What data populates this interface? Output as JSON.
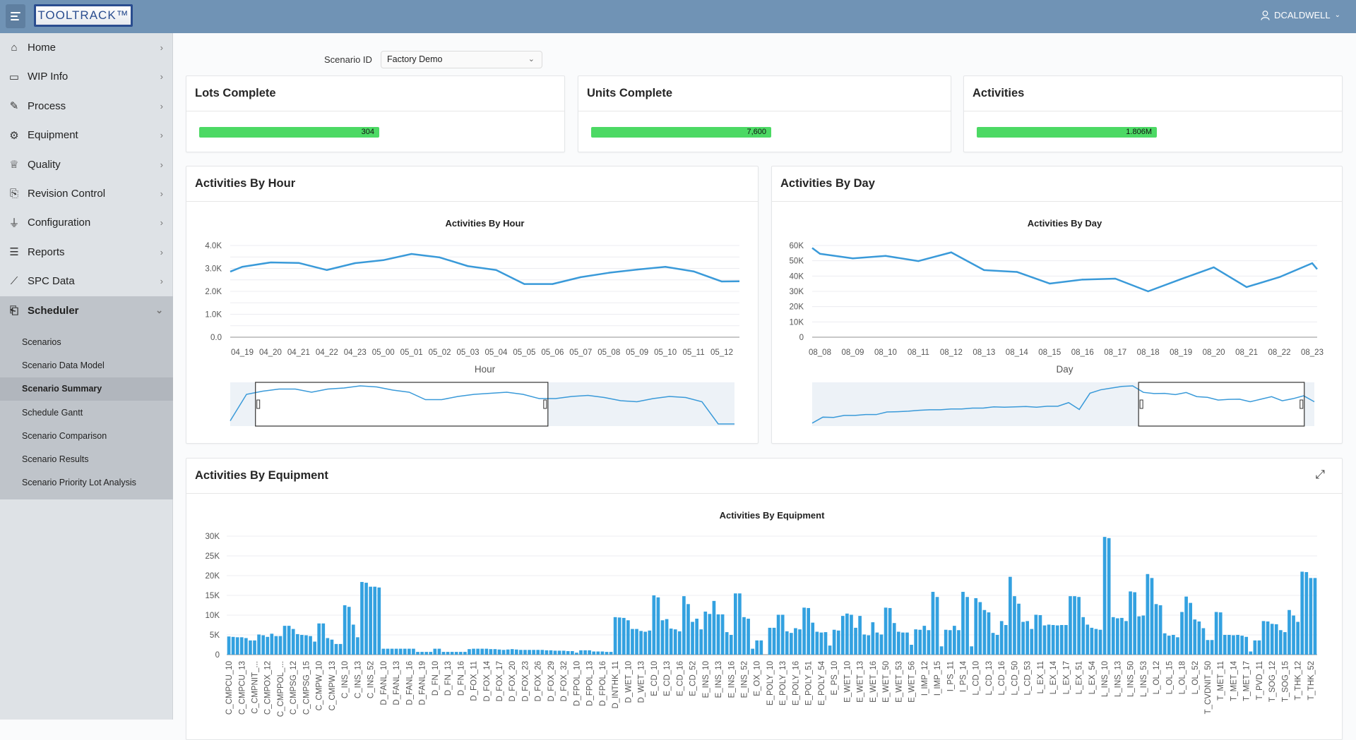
{
  "header": {
    "logo": "TOOLTRACK™",
    "user": "DCALDWELL",
    "color": "#7093b5"
  },
  "sidebar": {
    "items": [
      {
        "label": "Home",
        "icon": "home-icon"
      },
      {
        "label": "WIP Info",
        "icon": "folder-icon"
      },
      {
        "label": "Process",
        "icon": "pencil-icon"
      },
      {
        "label": "Equipment",
        "icon": "gear-icon"
      },
      {
        "label": "Quality",
        "icon": "trophy-icon"
      },
      {
        "label": "Revision Control",
        "icon": "document-clock-icon"
      },
      {
        "label": "Configuration",
        "icon": "hierarchy-icon"
      },
      {
        "label": "Reports",
        "icon": "database-chart-icon"
      },
      {
        "label": "SPC Data",
        "icon": "line-chart-icon"
      },
      {
        "label": "Scheduler",
        "icon": "clipboard-clock-icon",
        "expanded": true
      }
    ],
    "scheduler_items": [
      "Scenarios",
      "Scenario Data Model",
      "Scenario Summary",
      "Schedule Gantt",
      "Scenario Comparison",
      "Scenario Results",
      "Scenario Priority Lot Analysis"
    ],
    "active_item": "Scenario Summary"
  },
  "filter": {
    "label": "Scenario ID",
    "value": "Factory Demo"
  },
  "kpis": [
    {
      "title": "Lots Complete",
      "value": "304"
    },
    {
      "title": "Units Complete",
      "value": "7,600"
    },
    {
      "title": "Activities",
      "value": "1.806M"
    }
  ],
  "kpi_bar_color": "#4cd964",
  "cards": {
    "hour": "Activities By Hour",
    "day": "Activities By Day",
    "equipment": "Activities By Equipment"
  },
  "chart_data": [
    {
      "type": "line",
      "title": "Activities By Hour",
      "xlabel": "Hour",
      "ylabel": "",
      "categories": [
        "04_19",
        "04_20",
        "04_21",
        "04_22",
        "04_23",
        "05_00",
        "05_01",
        "05_02",
        "05_03",
        "05_04",
        "05_05",
        "05_06",
        "05_07",
        "05_08",
        "05_09",
        "05_10",
        "05_11",
        "05_12"
      ],
      "values": [
        3070,
        3260,
        3240,
        2930,
        3230,
        3360,
        3630,
        3480,
        3100,
        2930,
        2320,
        2320,
        2620,
        2810,
        2950,
        3070,
        2870,
        2430
      ],
      "ylim": [
        0,
        4000
      ],
      "yticks": [
        "0.0",
        "1.0K",
        "2.0K",
        "3.0K",
        "4.0K"
      ],
      "grid": true,
      "color": "#3a9ad9",
      "navigator": {
        "values": [
          0.3,
          2.8,
          3.1,
          3.3,
          3.3,
          3.0,
          3.3,
          3.4,
          3.6,
          3.5,
          3.2,
          3.0,
          2.3,
          2.3,
          2.6,
          2.8,
          2.9,
          3.0,
          2.8,
          2.4,
          2.4,
          2.6,
          2.7,
          2.5,
          2.2,
          2.1,
          2.4,
          2.6,
          2.5,
          2.1,
          0,
          0
        ],
        "window": [
          0.05,
          0.63
        ]
      }
    },
    {
      "type": "line",
      "title": "Activities By Day",
      "xlabel": "Day",
      "ylabel": "",
      "categories": [
        "08_08",
        "08_09",
        "08_10",
        "08_11",
        "08_12",
        "08_13",
        "08_14",
        "08_15",
        "08_16",
        "08_17",
        "08_18",
        "08_19",
        "08_20",
        "08_21",
        "08_22",
        "08_23"
      ],
      "values": [
        54600,
        51600,
        53200,
        49800,
        55500,
        43900,
        42700,
        35100,
        37700,
        38300,
        30000,
        38000,
        45700,
        32800,
        39300,
        48400
      ],
      "ylim": [
        0,
        60000
      ],
      "yticks": [
        "0",
        "10K",
        "20K",
        "30K",
        "40K",
        "50K",
        "60K"
      ],
      "grid": true,
      "color": "#3a9ad9",
      "navigator": {
        "values": [
          0.5,
          4,
          3.8,
          5,
          5,
          5.5,
          5.5,
          7,
          7.2,
          7.5,
          8,
          8.3,
          8.3,
          8.8,
          8.8,
          9.3,
          9.3,
          10,
          9.8,
          10,
          10.2,
          9.8,
          10.4,
          10.4,
          12.5,
          8.5,
          18,
          20,
          21,
          22,
          22.3,
          18.5,
          17.8,
          17.9,
          17.2,
          18.4,
          16,
          15.6,
          14,
          14.4,
          14.5,
          13,
          14.5,
          16,
          13.6,
          14.8,
          16.5,
          13
        ],
        "window": [
          0.65,
          0.98
        ]
      }
    },
    {
      "type": "bar",
      "title": "Activities By Equipment",
      "xlabel": "",
      "ylabel": "",
      "ylim": [
        0,
        30000
      ],
      "yticks": [
        "0",
        "5K",
        "10K",
        "15K",
        "20K",
        "25K",
        "30K"
      ],
      "grid": true,
      "color": "#33a1e0",
      "label_every": 3,
      "tick_labels": [
        "C_CMPCU_10",
        "C_CMPCU_13",
        "C_CMPNIT_...",
        "C_CMPOX_12",
        "C_CMPPOL_...",
        "C_CMPSG_12",
        "C_CMPSG_15",
        "C_CMPW_10",
        "C_CMPW_13",
        "C_INS_10",
        "C_INS_13",
        "C_INS_52",
        "D_FANL_10",
        "D_FANL_13",
        "D_FANL_16",
        "D_FANL_19",
        "D_FN_10",
        "D_FN_13",
        "D_FN_16",
        "D_FOX_11",
        "D_FOX_14",
        "D_FOX_17",
        "D_FOX_20",
        "D_FOX_23",
        "D_FOX_26",
        "D_FOX_29",
        "D_FOX_32",
        "D_FPOL_10",
        "D_FPOL_13",
        "D_FPOL_16",
        "D_INTHK_11",
        "D_WET_10",
        "D_WET_13",
        "E_CD_10",
        "E_CD_13",
        "E_CD_16",
        "E_CD_52",
        "E_INS_10",
        "E_INS_13",
        "E_INS_16",
        "E_INS_52",
        "E_OX_10",
        "E_POLY_10",
        "E_POLY_13",
        "E_POLY_16",
        "E_POLY_51",
        "E_POLY_54",
        "E_PS_10",
        "E_WET_10",
        "E_WET_13",
        "E_WET_16",
        "E_WET_50",
        "E_WET_53",
        "E_WET_56",
        "I_IMP_12",
        "I_IMP_15",
        "I_PS_11",
        "I_PS_14",
        "L_CD_10",
        "L_CD_13",
        "L_CD_16",
        "L_CD_50",
        "L_CD_53",
        "L_EX_11",
        "L_EX_14",
        "L_EX_17",
        "L_EX_51",
        "L_EX_54",
        "L_INS_10",
        "L_INS_13",
        "L_INS_50",
        "L_INS_53",
        "L_OL_12",
        "L_OL_15",
        "L_OL_18",
        "L_OL_52",
        "T_CVDNIT_50",
        "T_MET_11",
        "T_MET_14",
        "T_MET_17",
        "T_PVD_11",
        "T_SOG_12",
        "T_SOG_15",
        "T_THK_12",
        "T_THK_52"
      ],
      "values_k": [
        4.6,
        4.5,
        4.4,
        4.4,
        4.2,
        3.6,
        3.6,
        5.1,
        4.9,
        4.5,
        5.3,
        4.7,
        4.7,
        7.3,
        7.3,
        6.5,
        5.2,
        5.0,
        4.9,
        4.7,
        3.3,
        7.9,
        7.9,
        4.2,
        3.8,
        2.7,
        2.7,
        12.5,
        12.1,
        7.6,
        4.4,
        18.4,
        18.2,
        17.2,
        17.2,
        17.0,
        1.5,
        1.5,
        1.5,
        1.5,
        1.5,
        1.5,
        1.5,
        1.5,
        0.7,
        0.7,
        0.7,
        0.7,
        1.5,
        1.5,
        0.7,
        0.7,
        0.7,
        0.7,
        0.7,
        0.7,
        1.4,
        1.5,
        1.5,
        1.5,
        1.5,
        1.4,
        1.4,
        1.3,
        1.2,
        1.3,
        1.4,
        1.3,
        1.2,
        1.2,
        1.2,
        1.2,
        1.2,
        1.2,
        1.1,
        1.1,
        1.0,
        1.0,
        1.0,
        0.9,
        0.9,
        0.5,
        1.1,
        1.1,
        1.1,
        0.8,
        0.8,
        0.8,
        0.7,
        0.7,
        9.5,
        9.4,
        9.3,
        8.7,
        6.5,
        6.5,
        6.0,
        5.8,
        6.1,
        15.0,
        14.5,
        8.7,
        9.0,
        6.6,
        6.4,
        5.9,
        14.8,
        12.8,
        8.3,
        9.1,
        6.4,
        10.9,
        10.3,
        13.6,
        10.2,
        10.2,
        5.7,
        5.0,
        15.5,
        15.5,
        9.5,
        9.1,
        1.5,
        3.6,
        3.6,
        0,
        6.8,
        6.8,
        10.1,
        10.1,
        5.9,
        5.5,
        6.7,
        6.4,
        11.9,
        11.8,
        8.1,
        5.8,
        5.6,
        5.7,
        2.3,
        6.3,
        6.1,
        9.8,
        10.4,
        10.1,
        6.8,
        9.8,
        5.1,
        4.9,
        8.2,
        5.6,
        5.1,
        11.9,
        11.8,
        8.0,
        5.8,
        5.6,
        5.6,
        2.5,
        6.4,
        6.3,
        7.3,
        6.2,
        15.9,
        14.6,
        2.1,
        6.3,
        6.2,
        7.3,
        6.2,
        15.9,
        14.6,
        2.1,
        14.3,
        13.3,
        11.3,
        10.7,
        5.5,
        5.0,
        8.5,
        7.5,
        19.7,
        14.8,
        12.9,
        8.3,
        8.5,
        6.5,
        10.1,
        10.0,
        7.4,
        7.6,
        7.5,
        7.4,
        7.5,
        7.5,
        14.8,
        14.8,
        14.6,
        9.5,
        7.6,
        6.8,
        6.5,
        6.3,
        29.8,
        29.5,
        9.5,
        9.2,
        9.3,
        8.5,
        16.0,
        15.8,
        9.7,
        9.9,
        20.4,
        19.4,
        12.8,
        12.5,
        5.4,
        4.8,
        5.0,
        4.4,
        10.8,
        14.7,
        13.1,
        8.9,
        8.4,
        6.7,
        3.7,
        3.7,
        10.8,
        10.7,
        5.0,
        5.0,
        4.9,
        5.0,
        4.8,
        4.5,
        0.8,
        3.6,
        3.6,
        8.5,
        8.4,
        7.8,
        7.7,
        6.2,
        5.7,
        11.3,
        9.9,
        8.3,
        21.0,
        20.9,
        19.4,
        19.4
      ]
    }
  ]
}
